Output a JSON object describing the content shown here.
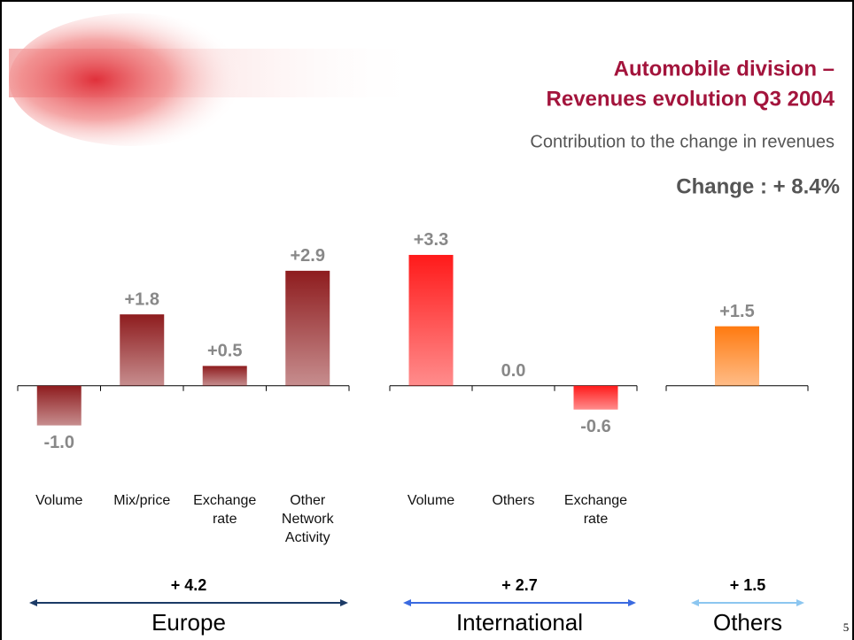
{
  "slide": {
    "title": [
      "Automobile division –",
      "Revenues evolution Q3 2004"
    ],
    "subtitle": "Contribution to the change in revenues",
    "change": "Change : + 8.4%",
    "page": "5"
  },
  "chart_data": [
    {
      "type": "bar",
      "name": "Europe",
      "categories": [
        "Volume",
        "Mix/price",
        "Exchange rate",
        "Other Network Activity"
      ],
      "values": [
        -1.0,
        1.8,
        0.5,
        2.9
      ],
      "value_labels": [
        "-1.0",
        "+1.8",
        "+0.5",
        "+2.9"
      ],
      "color": "#8e1c1e",
      "ylim": [
        -1.5,
        3.5
      ],
      "total": {
        "value": 4.2,
        "label": "+ 4.2"
      },
      "arrow_color": "#1b3a66"
    },
    {
      "type": "bar",
      "name": "International",
      "categories": [
        "Volume",
        "Others",
        "Exchange rate"
      ],
      "values": [
        3.3,
        0.0,
        -0.6
      ],
      "value_labels": [
        "+3.3",
        "0.0",
        "-0.6"
      ],
      "color": "#ff1a1a",
      "ylim": [
        -1.5,
        3.5
      ],
      "total": {
        "value": 2.7,
        "label": "+ 2.7"
      },
      "arrow_color": "#3a6ae0"
    },
    {
      "type": "bar",
      "name": "Others",
      "categories": [
        null
      ],
      "values": [
        1.5
      ],
      "value_labels": [
        "+1.5"
      ],
      "color": "#ff7a10",
      "ylim": [
        -1.5,
        3.5
      ],
      "total": {
        "value": 1.5,
        "label": "+ 1.5"
      },
      "arrow_color": "#8cc6f0"
    }
  ]
}
